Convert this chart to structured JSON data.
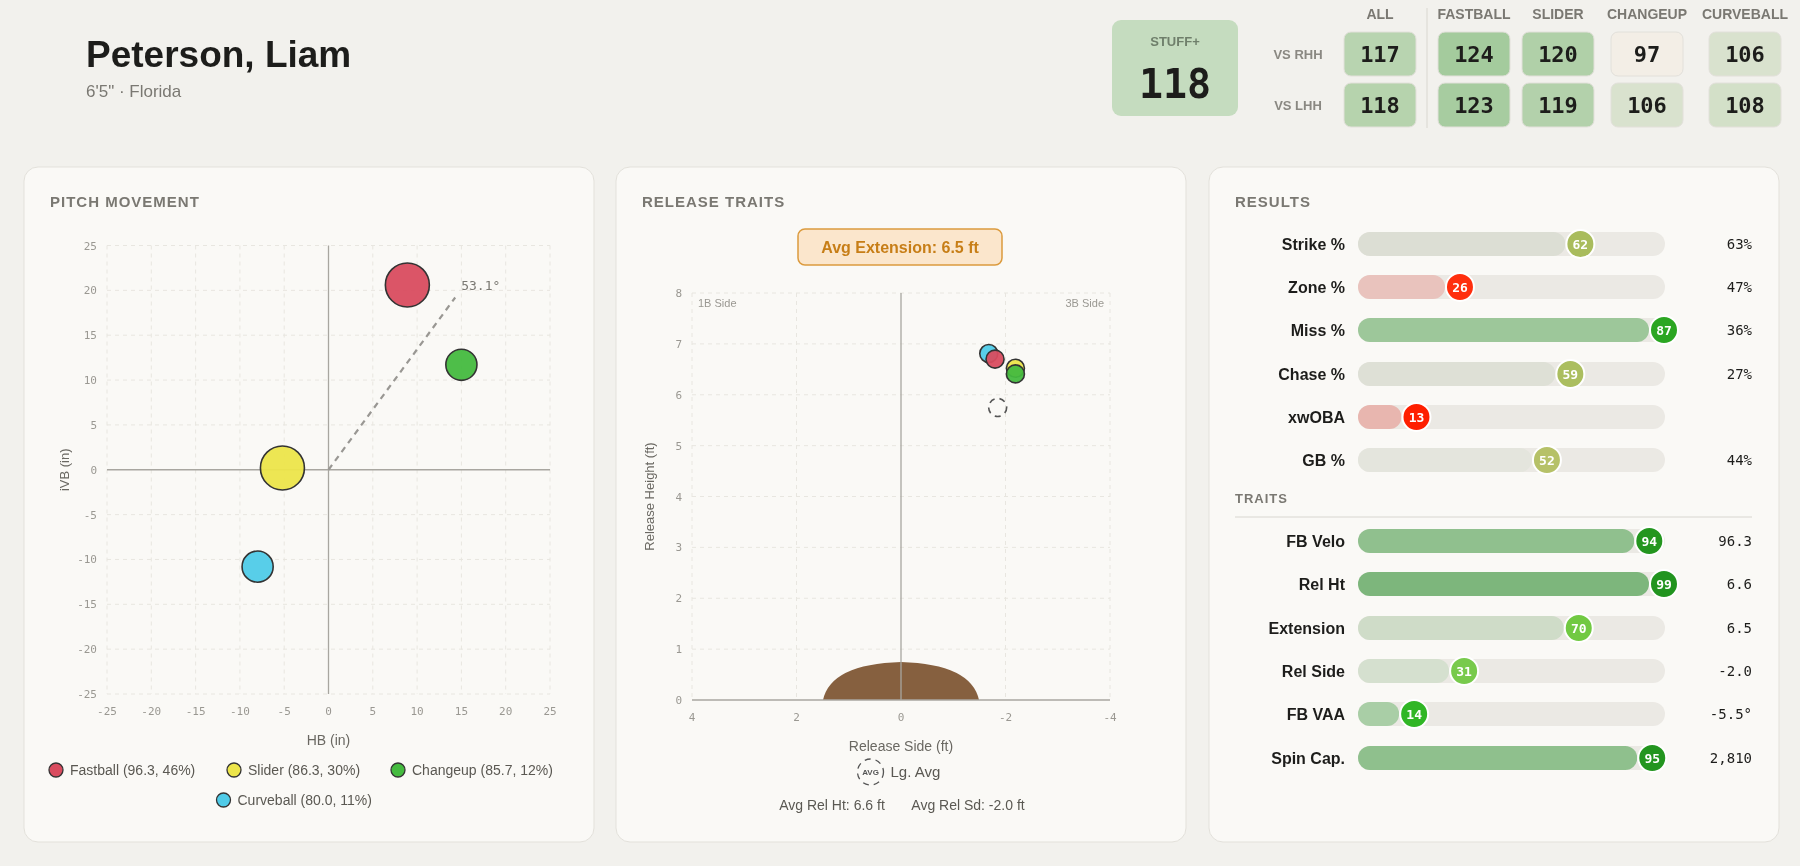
{
  "chart_data": [
    {
      "type": "other",
      "title": "Peterson, Liam",
      "subtitle": "6'5\" · Florida"
    },
    {
      "type": "other",
      "title": "STUFF+",
      "annotations": [
        "118"
      ]
    },
    {
      "type": "heatmap",
      "categories": [
        "ALL",
        "FASTBALL",
        "SLIDER",
        "CHANGEUP",
        "CURVEBALL"
      ],
      "y_categories": [
        "VS RHH",
        "VS LHH"
      ],
      "cells": [
        [
          117,
          124,
          120,
          97,
          106
        ],
        [
          118,
          123,
          119,
          106,
          108
        ]
      ],
      "cell_labels": [
        [
          "117",
          "124",
          "120",
          "97",
          "106"
        ],
        [
          "118",
          "123",
          "119",
          "106",
          "108"
        ]
      ]
    },
    {
      "type": "bubble",
      "title": "PITCH MOVEMENT",
      "xlabel": "HB (in)",
      "ylabel": "iVB (in)",
      "xlim": [
        -25,
        25
      ],
      "ylim": [
        -25,
        25
      ],
      "xticks": [
        -25,
        -20,
        -15,
        -10,
        -5,
        0,
        5,
        10,
        15,
        20,
        25
      ],
      "yticks": [
        -25,
        -20,
        -15,
        -10,
        -5,
        0,
        5,
        10,
        15,
        20,
        25
      ],
      "grid": true,
      "legend": "bottom",
      "marker": "circle",
      "series": [
        {
          "type": "line",
          "color": "#999793",
          "line_style": "dashed",
          "marker": "none",
          "x": [
            0,
            14.3
          ],
          "values": [
            0,
            19.2
          ]
        },
        {
          "name": "Fastball (96.3, 46%)",
          "color": "#d94c5f",
          "x": [
            8.9
          ],
          "values": [
            20.6
          ],
          "sizes": [
            1
          ]
        },
        {
          "name": "Slider (86.3, 30%)",
          "color": "#ece54a",
          "x": [
            -5.2
          ],
          "values": [
            0.2
          ],
          "sizes": [
            1
          ]
        },
        {
          "name": "Changeup (85.7, 12%)",
          "color": "#44bb3f",
          "x": [
            15
          ],
          "values": [
            11.7
          ],
          "sizes": [
            0.5
          ]
        },
        {
          "name": "Curveball (80.0, 11%)",
          "color": "#4fcbe8",
          "x": [
            -8
          ],
          "values": [
            -10.8
          ],
          "sizes": [
            0.5
          ]
        }
      ],
      "annotations": [
        {
          "text": "53.1°",
          "x": 14.3,
          "y": 19.2
        }
      ]
    },
    {
      "type": "scatter",
      "title": "RELEASE TRAITS",
      "xlabel": "Release Side (ft)",
      "ylabel": "Release Height (ft)",
      "xlim": [
        4,
        -4
      ],
      "ylim": [
        0,
        8
      ],
      "xticks": [
        4,
        2,
        0,
        -2,
        -4
      ],
      "yticks": [
        0,
        1,
        2,
        3,
        4,
        5,
        6,
        7,
        8
      ],
      "grid": true,
      "legend": "bottom",
      "marker": "circle",
      "series": [
        {
          "color": "#4fcbe8",
          "x": [
            -1.68
          ],
          "values": [
            6.81
          ]
        },
        {
          "color": "#d94c5f",
          "x": [
            -1.8
          ],
          "values": [
            6.7
          ]
        },
        {
          "color": "#ece54a",
          "x": [
            -2.19
          ],
          "values": [
            6.52
          ]
        },
        {
          "color": "#44bb3f",
          "x": [
            -2.19
          ],
          "values": [
            6.41
          ]
        },
        {
          "name": "Lg. Avg",
          "color": "#555555",
          "line_style": "dashed",
          "x": [
            -1.85
          ],
          "values": [
            5.75
          ]
        }
      ],
      "annotations": [
        "Avg Extension: 6.5 ft",
        "1B Side",
        "3B Side",
        "AVG",
        "Avg Rel Ht: 6.6 ft",
        "Avg Rel Sd: -2.0 ft"
      ]
    },
    {
      "type": "bar",
      "orientation": "horizontal",
      "title": "RESULTS",
      "data_labels": true,
      "categories": [
        "Strike %",
        "Zone %",
        "Miss %",
        "Chase %",
        "xwOBA",
        "GB %"
      ],
      "values": [
        62,
        26,
        87,
        59,
        13,
        52
      ],
      "colors": [
        "#dcded4",
        "#e9c3bd",
        "#9dc79a",
        "#dee0d6",
        "#e8b6af",
        "#e4e5dd"
      ],
      "annotations": [
        "63%",
        "47%",
        "36%",
        "27%",
        "44%"
      ]
    },
    {
      "type": "bar",
      "orientation": "horizontal",
      "title": "TRAITS",
      "data_labels": true,
      "categories": [
        "FB Velo",
        "Rel Ht",
        "Extension",
        "Rel Side",
        "FB VAA",
        "Spin Cap."
      ],
      "values": [
        94,
        99,
        70,
        31,
        14,
        95
      ],
      "colors": [
        "#90c08e",
        "#7db67c",
        "#cfdcc8",
        "#d5e0cf",
        "#a9cea6",
        "#8fc08d"
      ],
      "annotations": [
        "96.3",
        "6.6",
        "6.5",
        "-2.0",
        "-5.5°",
        "2,810"
      ]
    }
  ]
}
